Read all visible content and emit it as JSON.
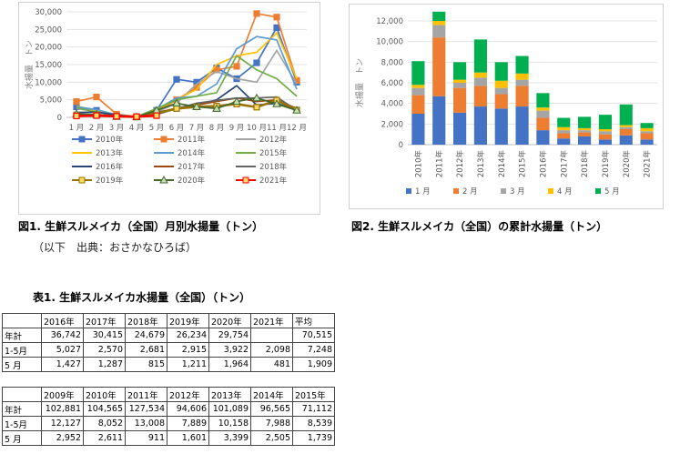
{
  "figure1": {
    "caption": "図1. 生鮮スルメイカ（全国）月別水揚量（トン）",
    "source_note": "（以下　出典：おさかなひろば）",
    "chart_data": {
      "type": "line",
      "ylabel": "水揚量　トン",
      "ylim": [
        0,
        30000
      ],
      "yticks": [
        "0",
        "5,000",
        "10,000",
        "15,000",
        "20,000",
        "25,000",
        "30,000"
      ],
      "categories": [
        "1 月",
        "2 月",
        "3 月",
        "4 月",
        "5 月",
        "6 月",
        "7 月",
        "8 月",
        "9 月",
        "10 月",
        "11 月",
        "12 月"
      ],
      "series": [
        {
          "name": "2010年",
          "color": "#4472c4",
          "marker": "square",
          "values": [
            3000,
            2000,
            700,
            200,
            2000,
            10800,
            10000,
            14000,
            11000,
            15500,
            25500,
            10000
          ]
        },
        {
          "name": "2011年",
          "color": "#ed7d31",
          "marker": "square",
          "values": [
            4500,
            5800,
            900,
            200,
            1500,
            5000,
            8500,
            13500,
            14500,
            29500,
            28500,
            10500
          ]
        },
        {
          "name": "2012年",
          "color": "#a5a5a5",
          "marker": "none",
          "values": [
            2500,
            1600,
            500,
            200,
            1500,
            4000,
            9500,
            13000,
            11000,
            10000,
            19000,
            9500
          ]
        },
        {
          "name": "2013年",
          "color": "#ffc000",
          "marker": "none",
          "values": [
            3200,
            2000,
            700,
            200,
            2200,
            5000,
            8000,
            15000,
            17500,
            18500,
            24000,
            11000
          ]
        },
        {
          "name": "2014年",
          "color": "#5b9bd5",
          "marker": "none",
          "values": [
            3000,
            2200,
            700,
            200,
            2300,
            5500,
            6000,
            9500,
            19500,
            23000,
            22000,
            8000
          ]
        },
        {
          "name": "2015年",
          "color": "#70ad47",
          "marker": "none",
          "values": [
            2700,
            1500,
            600,
            200,
            2500,
            5000,
            6000,
            7000,
            17500,
            13500,
            11000,
            6000
          ]
        },
        {
          "name": "2016年",
          "color": "#264478",
          "marker": "none",
          "values": [
            1400,
            1500,
            700,
            100,
            1400,
            2500,
            3500,
            5000,
            9000,
            3500,
            4000,
            2000
          ]
        },
        {
          "name": "2017年",
          "color": "#9e480e",
          "marker": "none",
          "values": [
            700,
            700,
            400,
            100,
            1300,
            2300,
            3500,
            4500,
            5500,
            4500,
            5000,
            2500
          ]
        },
        {
          "name": "2018年",
          "color": "#636363",
          "marker": "none",
          "values": [
            800,
            800,
            300,
            100,
            800,
            2500,
            4000,
            4800,
            5500,
            5500,
            5800,
            2000
          ]
        },
        {
          "name": "2019年",
          "color": "#997300",
          "marker": "square",
          "values": [
            700,
            700,
            300,
            100,
            1200,
            2500,
            3000,
            3200,
            3800,
            2900,
            4900,
            2100
          ]
        },
        {
          "name": "2020年",
          "color": "#43682b",
          "marker": "triangle",
          "values": [
            1000,
            800,
            200,
            100,
            2000,
            4000,
            3000,
            2500,
            4500,
            5500,
            3800,
            2000
          ]
        },
        {
          "name": "2021年",
          "color": "#ff0000",
          "marker": "square",
          "values": [
            400,
            500,
            300,
            200,
            500,
            null,
            null,
            null,
            null,
            null,
            null,
            null
          ]
        }
      ]
    }
  },
  "figure2": {
    "caption": "図2. 生鮮スルメイカ（全国）の累計水揚量（トン）",
    "chart_data": {
      "type": "bar",
      "stacked": true,
      "ylabel": "水揚量　トン",
      "ylim": [
        0,
        12000
      ],
      "yticks": [
        "0",
        "2,000",
        "4,000",
        "6,000",
        "8,000",
        "10,000",
        "12,000"
      ],
      "categories": [
        "2010年",
        "2011年",
        "2012年",
        "2013年",
        "2014年",
        "2015年",
        "2016年",
        "2017年",
        "2018年",
        "2019年",
        "2020年",
        "2021年"
      ],
      "series": [
        {
          "name": "1 月",
          "color": "#4472c4",
          "values": [
            3000,
            4700,
            3100,
            3700,
            3500,
            3700,
            1400,
            600,
            800,
            500,
            900,
            500
          ]
        },
        {
          "name": "2 月",
          "color": "#ed7d31",
          "values": [
            1800,
            5700,
            2400,
            2000,
            1400,
            2000,
            1200,
            500,
            400,
            500,
            600,
            600
          ]
        },
        {
          "name": "3 月",
          "color": "#a5a5a5",
          "values": [
            700,
            1200,
            500,
            800,
            600,
            600,
            700,
            300,
            200,
            300,
            200,
            200
          ]
        },
        {
          "name": "4 月",
          "color": "#ffc000",
          "values": [
            300,
            400,
            300,
            500,
            700,
            600,
            300,
            300,
            200,
            200,
            200,
            300
          ]
        },
        {
          "name": "5 月",
          "color": "#00b050",
          "values": [
            2300,
            900,
            1700,
            3200,
            1800,
            1700,
            1400,
            900,
            1100,
            1400,
            2000,
            500
          ]
        }
      ]
    }
  },
  "table1": {
    "title": "表1. 生鮮スルメイカ水揚量（全国）（トン）",
    "part_a": {
      "headers": [
        "",
        "2016年",
        "2017年",
        "2018年",
        "2019年",
        "2020年",
        "2021年",
        "平均"
      ],
      "rows": [
        [
          "年計",
          "36,742",
          "30,415",
          "24,679",
          "26,234",
          "29,754",
          "",
          "70,515"
        ],
        [
          "1-5月",
          "5,027",
          "2,570",
          "2,681",
          "2,915",
          "3,922",
          "2,098",
          "7,248"
        ],
        [
          "5 月",
          "1,427",
          "1,287",
          "815",
          "1,211",
          "1,964",
          "481",
          "1,909"
        ]
      ]
    },
    "part_b": {
      "headers": [
        "",
        "2009年",
        "2010年",
        "2011年",
        "2012年",
        "2013年",
        "2014年",
        "2015年"
      ],
      "rows": [
        [
          "年計",
          "102,881",
          "104,565",
          "127,534",
          "94,606",
          "101,089",
          "96,565",
          "71,112"
        ],
        [
          "1-5月",
          "12,127",
          "8,052",
          "13,008",
          "7,889",
          "10,158",
          "7,988",
          "8,539"
        ],
        [
          "5 月",
          "2,952",
          "2,611",
          "911",
          "1,601",
          "3,399",
          "2,505",
          "1,739"
        ]
      ]
    }
  }
}
